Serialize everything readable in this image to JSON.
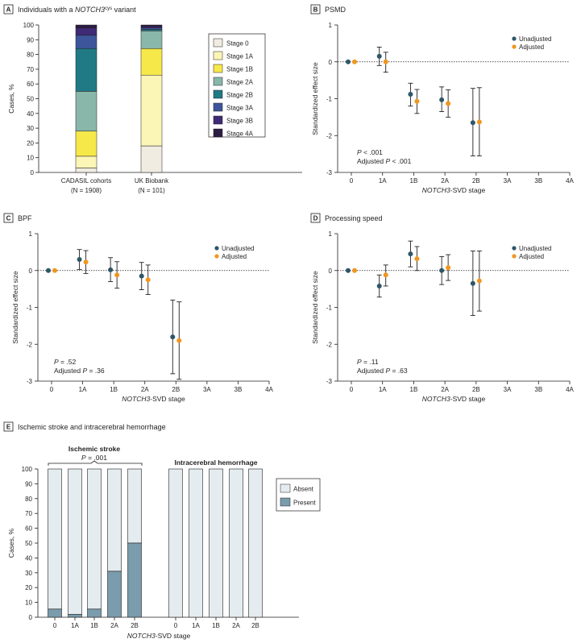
{
  "colors": {
    "unadjusted": "#2e5667",
    "adjusted": "#f0961e",
    "stage": {
      "Stage 0": "#f0ece1",
      "Stage 1A": "#fbf5b6",
      "Stage 1B": "#f7e84a",
      "Stage 2A": "#89b7aa",
      "Stage 2B": "#1f7a85",
      "Stage 3A": "#3d559a",
      "Stage 3B": "#3f2a75",
      "Stage 4A": "#2c1c42"
    },
    "absent": "#e4ecef",
    "present": "#7a9cac"
  },
  "panels": {
    "A": {
      "letter": "A",
      "title_pre": "Individuals with a ",
      "title_gene": "NOTCH3",
      "title_sup": "cys",
      "title_post": " variant"
    },
    "B": {
      "letter": "B",
      "title": "PSMD"
    },
    "C": {
      "letter": "C",
      "title": "BPF"
    },
    "D": {
      "letter": "D",
      "title": "Processing speed"
    },
    "E": {
      "letter": "E",
      "title": "Ischemic stroke and intracerebral hemorrhage"
    }
  },
  "chart_data": [
    {
      "panel": "A",
      "type": "bar",
      "stacked": true,
      "ylabel": "Cases, %",
      "ylim": [
        0,
        100
      ],
      "yticks": [
        0,
        10,
        20,
        30,
        40,
        50,
        60,
        70,
        80,
        90,
        100
      ],
      "categories": [
        "CADASIL cohorts",
        "UK Biobank"
      ],
      "category_sublabels": [
        "(N = 1908)",
        "(N = 101)"
      ],
      "legend": [
        "Stage 0",
        "Stage 1A",
        "Stage 1B",
        "Stage 2A",
        "Stage 2B",
        "Stage 3A",
        "Stage 3B",
        "Stage 4A"
      ],
      "series": [
        {
          "name": "Stage 0",
          "values": [
            3,
            18
          ]
        },
        {
          "name": "Stage 1A",
          "values": [
            8,
            48
          ]
        },
        {
          "name": "Stage 1B",
          "values": [
            17,
            18
          ]
        },
        {
          "name": "Stage 2A",
          "values": [
            27,
            12
          ]
        },
        {
          "name": "Stage 2B",
          "values": [
            29,
            1
          ]
        },
        {
          "name": "Stage 3A",
          "values": [
            9,
            1
          ]
        },
        {
          "name": "Stage 3B",
          "values": [
            5,
            1
          ]
        },
        {
          "name": "Stage 4A",
          "values": [
            2,
            1
          ]
        }
      ]
    },
    {
      "panel": "B",
      "type": "scatter",
      "ylabel": "Standardized effect size",
      "xlabel_italic": "NOTCH3",
      "xlabel_rest": "-SVD stage",
      "ylim": [
        -3,
        1
      ],
      "yticks": [
        1,
        0,
        -1,
        -2,
        -3
      ],
      "categories": [
        "0",
        "1A",
        "1B",
        "2A",
        "2B",
        "3A",
        "3B",
        "4A"
      ],
      "stats": [
        "P < .001",
        "Adjusted P < .001"
      ],
      "legend": [
        "Unadjusted",
        "Adjusted"
      ],
      "series": [
        {
          "name": "Unadjusted",
          "points": [
            {
              "x": "0",
              "y": 0
            },
            {
              "x": "1A",
              "y": 0.15,
              "lo": -0.1,
              "hi": 0.4
            },
            {
              "x": "1B",
              "y": -0.88,
              "lo": -1.2,
              "hi": -0.58
            },
            {
              "x": "2A",
              "y": -1.03,
              "lo": -1.35,
              "hi": -0.68
            },
            {
              "x": "2B",
              "y": -1.65,
              "lo": -2.55,
              "hi": -0.72
            }
          ]
        },
        {
          "name": "Adjusted",
          "points": [
            {
              "x": "0",
              "y": 0
            },
            {
              "x": "1A",
              "y": 0.0,
              "lo": -0.28,
              "hi": 0.26
            },
            {
              "x": "1B",
              "y": -1.07,
              "lo": -1.4,
              "hi": -0.75
            },
            {
              "x": "2A",
              "y": -1.13,
              "lo": -1.5,
              "hi": -0.76
            },
            {
              "x": "2B",
              "y": -1.63,
              "lo": -2.55,
              "hi": -0.7
            }
          ]
        }
      ]
    },
    {
      "panel": "C",
      "type": "scatter",
      "ylabel": "Standardized effect size",
      "xlabel_italic": "NOTCH3",
      "xlabel_rest": "-SVD stage",
      "ylim": [
        -3,
        1
      ],
      "yticks": [
        1,
        0,
        -1,
        -2,
        -3
      ],
      "categories": [
        "0",
        "1A",
        "1B",
        "2A",
        "2B",
        "3A",
        "3B",
        "4A"
      ],
      "stats": [
        "P = .52",
        "Adjusted P = .36"
      ],
      "legend": [
        "Unadjusted",
        "Adjusted"
      ],
      "series": [
        {
          "name": "Unadjusted",
          "points": [
            {
              "x": "0",
              "y": 0
            },
            {
              "x": "1A",
              "y": 0.3,
              "lo": 0.03,
              "hi": 0.57
            },
            {
              "x": "1B",
              "y": 0.02,
              "lo": -0.3,
              "hi": 0.35
            },
            {
              "x": "2A",
              "y": -0.15,
              "lo": -0.52,
              "hi": 0.22
            },
            {
              "x": "2B",
              "y": -1.8,
              "lo": -2.8,
              "hi": -0.8
            }
          ]
        },
        {
          "name": "Adjusted",
          "points": [
            {
              "x": "0",
              "y": 0
            },
            {
              "x": "1A",
              "y": 0.23,
              "lo": -0.08,
              "hi": 0.54
            },
            {
              "x": "1B",
              "y": -0.12,
              "lo": -0.48,
              "hi": 0.24
            },
            {
              "x": "2A",
              "y": -0.25,
              "lo": -0.65,
              "hi": 0.15
            },
            {
              "x": "2B",
              "y": -1.9,
              "lo": -2.95,
              "hi": -0.85
            }
          ]
        }
      ]
    },
    {
      "panel": "D",
      "type": "scatter",
      "ylabel": "Standardized effect size",
      "xlabel_italic": "NOTCH3",
      "xlabel_rest": "-SVD stage",
      "ylim": [
        -3,
        1
      ],
      "yticks": [
        1,
        0,
        -1,
        -2,
        -3
      ],
      "categories": [
        "0",
        "1A",
        "1B",
        "2A",
        "2B",
        "3A",
        "3B",
        "4A"
      ],
      "stats": [
        "P = .11",
        "Adjusted P = .63"
      ],
      "legend": [
        "Unadjusted",
        "Adjusted"
      ],
      "series": [
        {
          "name": "Unadjusted",
          "points": [
            {
              "x": "0",
              "y": 0
            },
            {
              "x": "1A",
              "y": -0.42,
              "lo": -0.72,
              "hi": -0.12
            },
            {
              "x": "1B",
              "y": 0.45,
              "lo": 0.1,
              "hi": 0.8
            },
            {
              "x": "2A",
              "y": 0.0,
              "lo": -0.38,
              "hi": 0.38
            },
            {
              "x": "2B",
              "y": -0.35,
              "lo": -1.22,
              "hi": 0.53
            }
          ]
        },
        {
          "name": "Adjusted",
          "points": [
            {
              "x": "0",
              "y": 0
            },
            {
              "x": "1A",
              "y": -0.12,
              "lo": -0.42,
              "hi": 0.15
            },
            {
              "x": "1B",
              "y": 0.32,
              "lo": 0.0,
              "hi": 0.65
            },
            {
              "x": "2A",
              "y": 0.08,
              "lo": -0.27,
              "hi": 0.43
            },
            {
              "x": "2B",
              "y": -0.28,
              "lo": -1.1,
              "hi": 0.53
            }
          ]
        }
      ]
    },
    {
      "panel": "E",
      "type": "bar",
      "stacked": true,
      "ylabel": "Cases, %",
      "xlabel_italic": "NOTCH3",
      "xlabel_rest": "-SVD stage",
      "ylim": [
        0,
        100
      ],
      "yticks": [
        0,
        10,
        20,
        30,
        40,
        50,
        60,
        70,
        80,
        90,
        100
      ],
      "groups": [
        {
          "name": "Ischemic stroke",
          "stat": "P = .001",
          "categories": [
            "0",
            "1A",
            "1B",
            "2A",
            "2B"
          ],
          "present": [
            5.5,
            2,
            5.5,
            31,
            50
          ]
        },
        {
          "name": "Intracerebral hemorrhage",
          "categories": [
            "0",
            "1A",
            "1B",
            "2A",
            "2B"
          ],
          "present": [
            0,
            0,
            0,
            0,
            0
          ]
        }
      ],
      "legend": [
        "Absent",
        "Present"
      ]
    }
  ]
}
